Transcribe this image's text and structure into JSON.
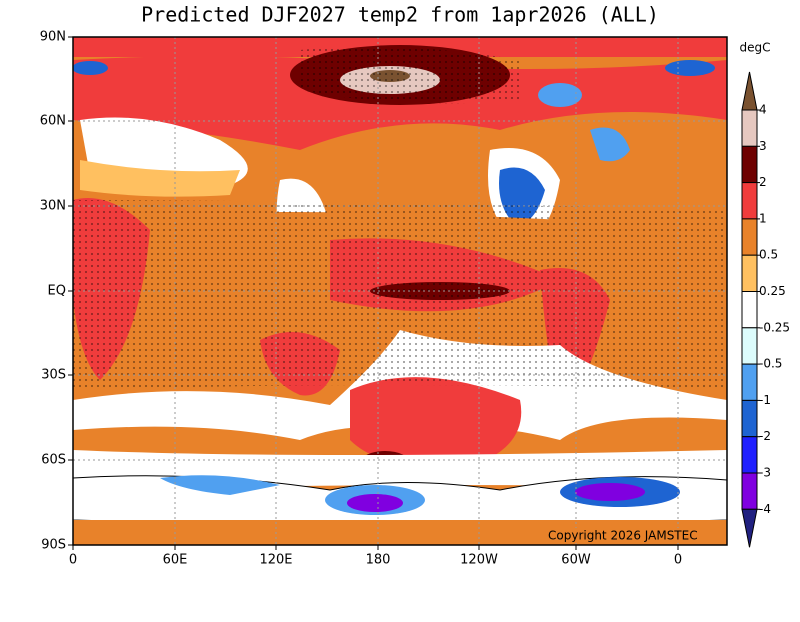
{
  "title": "Predicted DJF2027 temp2 from 1apr2026 (ALL)",
  "latitude_labels": [
    "90N",
    "60N",
    "30N",
    "EQ",
    "30S",
    "60S",
    "90S"
  ],
  "longitude_labels": [
    "0",
    "60E",
    "120E",
    "180",
    "120W",
    "60W",
    "0"
  ],
  "copyright": "Copyright 2026 JAMSTEC",
  "colorbar": {
    "unit": "degC",
    "levels": [
      4,
      3,
      2,
      1,
      0.5,
      0.25,
      -0.25,
      -0.5,
      -1,
      -2,
      -3,
      -4
    ],
    "colors": [
      "#7a5230",
      "#e6c8c0",
      "#6e0000",
      "#f03c3c",
      "#e8822a",
      "#ffc060",
      "#ffffff",
      "#dcfcfc",
      "#50a0f0",
      "#1e64d2",
      "#2020ff",
      "#8000e0",
      "#202080"
    ]
  }
}
